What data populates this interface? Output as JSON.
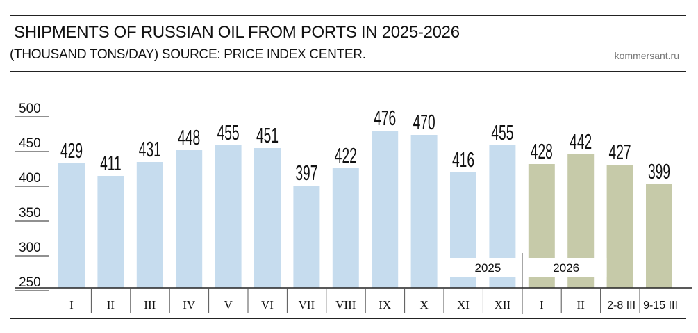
{
  "header": {
    "title": "SHIPMENTS OF RUSSIAN OIL FROM PORTS IN 2025-2026",
    "subtitle": "(THOUSAND TONS/DAY) SOURCE: PRICE INDEX CENTER.",
    "site": "kommersant.ru"
  },
  "chart_data": {
    "type": "bar",
    "title": "SHIPMENTS OF RUSSIAN OIL FROM PORTS IN 2025-2026",
    "xlabel": "",
    "ylabel": "",
    "ylim": [
      250,
      500
    ],
    "yticks": [
      "500",
      "450",
      "400",
      "350",
      "300",
      "250"
    ],
    "grid": false,
    "categories": [
      "I",
      "II",
      "III",
      "IV",
      "V",
      "VI",
      "VII",
      "VIII",
      "IX",
      "X",
      "XI",
      "XII",
      "I",
      "II",
      "2-8 III",
      "9-15 III"
    ],
    "values": [
      429,
      411,
      431,
      448,
      455,
      451,
      397,
      422,
      476,
      470,
      416,
      455,
      428,
      442,
      427,
      399
    ],
    "year_labels": [
      "2025",
      "2026"
    ],
    "year_of_bar": [
      0,
      0,
      0,
      0,
      0,
      0,
      0,
      0,
      0,
      0,
      0,
      0,
      1,
      1,
      1,
      1
    ],
    "colors": {
      "2025": "#c6dcee",
      "2026": "#c6caa9"
    }
  }
}
